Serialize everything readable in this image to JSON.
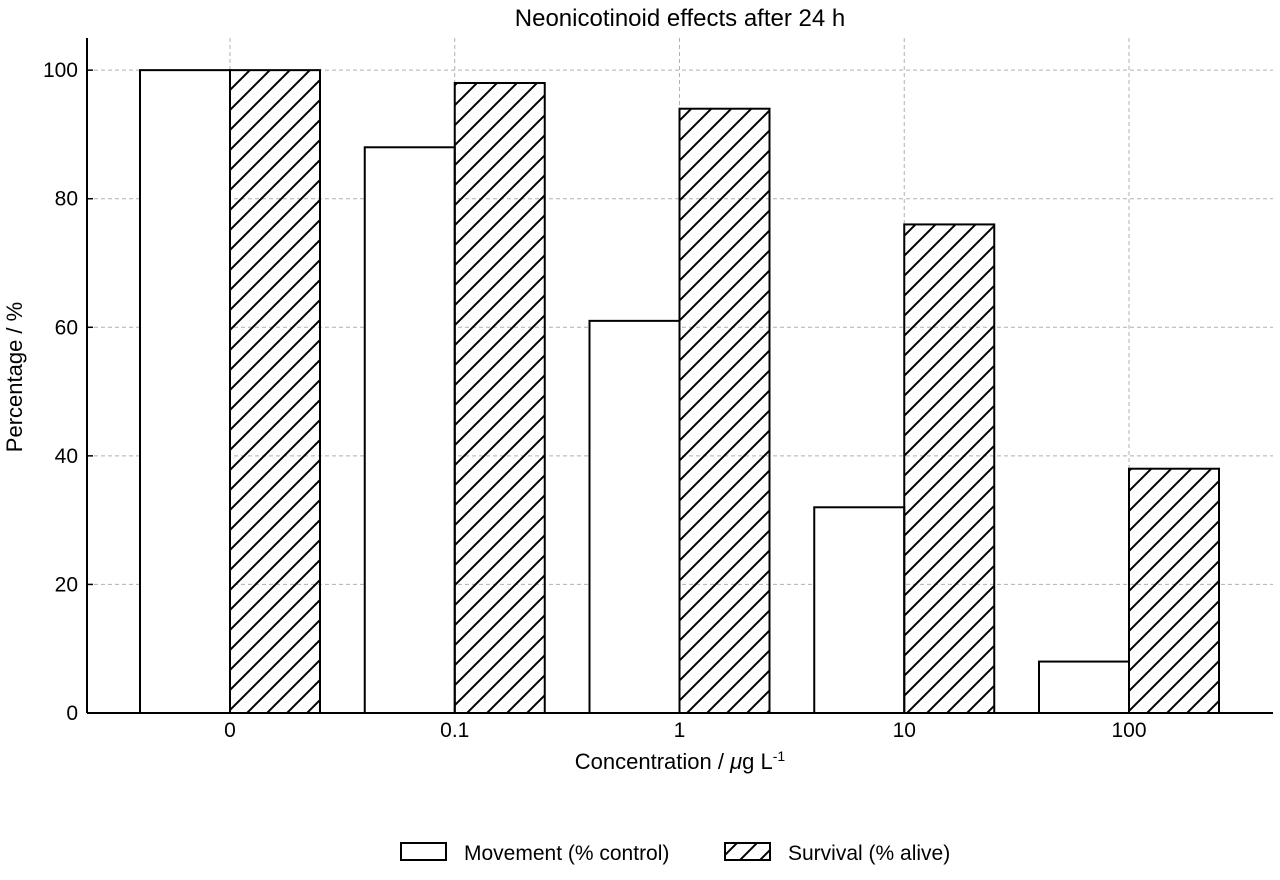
{
  "chart_data": {
    "type": "bar",
    "title": "Neonicotinoid effects after 24 h",
    "xlabel_main": "Concentration / ",
    "xlabel_mu": "μ",
    "xlabel_unit": "g L",
    "xlabel_sup": "-1",
    "ylabel": "Percentage / %",
    "categories": [
      "0",
      "0.1",
      "1",
      "10",
      "100"
    ],
    "series": [
      {
        "name": "Movement (% control)",
        "values": [
          100,
          88,
          61,
          32,
          8
        ],
        "pattern": "none"
      },
      {
        "name": "Survival (% alive)",
        "values": [
          100,
          98,
          94,
          76,
          38
        ],
        "pattern": "diagonal-hatch"
      }
    ],
    "ylim": [
      0,
      105
    ],
    "yticks": [
      0,
      20,
      40,
      60,
      80,
      100
    ],
    "grid": true,
    "legend_position": "bottom-center",
    "colors": {
      "bar_fill": "#ffffff",
      "bar_edge": "#000000",
      "grid": "#b0b0b0",
      "axis": "#000000"
    }
  }
}
